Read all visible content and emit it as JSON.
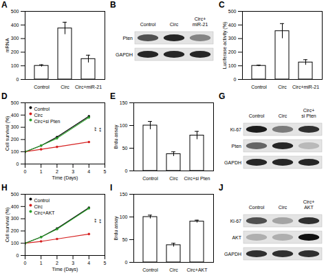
{
  "chart_data": [
    {
      "type": "bar",
      "title": "A",
      "y_label": "mRNA",
      "categories": [
        "Control",
        "Circ",
        "Circ+miR-21"
      ],
      "values": [
        100,
        375,
        150
      ],
      "errors": [
        8,
        45,
        28
      ],
      "color": "#ffffff",
      "ylim": [
        0,
        500
      ],
      "yticks": [
        0,
        100,
        200,
        300,
        400,
        500
      ]
    },
    {
      "type": "bar",
      "title": "C",
      "y_label": "Luciferase activity (%)",
      "categories": [
        "Control",
        "Circ",
        "Circ+miR-21"
      ],
      "values": [
        100,
        355,
        125
      ],
      "errors": [
        5,
        55,
        20
      ],
      "color": "#ffffff",
      "ylim": [
        0,
        500
      ],
      "yticks": [
        0,
        100,
        200,
        300,
        400,
        500
      ]
    },
    {
      "type": "line",
      "title": "D",
      "x_label": "Time (Days)",
      "y_label": "Cell survival (%)",
      "x": [
        0,
        1,
        2,
        4
      ],
      "series": [
        {
          "name": "Control",
          "color": "#000000",
          "values": [
            100,
            150,
            220,
            390
          ]
        },
        {
          "name": "Circ",
          "color": "#d62020",
          "values": [
            100,
            120,
            140,
            180
          ]
        },
        {
          "name": "Circ+si Pten",
          "color": "#2ca02c",
          "values": [
            100,
            150,
            210,
            380
          ]
        }
      ],
      "marker": "circle",
      "legend": "top-left",
      "xlim": [
        0,
        5
      ],
      "xticks": [
        0,
        1,
        2,
        3,
        4,
        5
      ],
      "ylim": [
        0,
        500
      ],
      "yticks": [
        0,
        100,
        200,
        300,
        400,
        500
      ],
      "annotations": [
        {
          "text": "**",
          "x": 4.35,
          "y": 285
        },
        {
          "text": "**",
          "x": 4.65,
          "y": 280
        }
      ]
    },
    {
      "type": "bar",
      "title": "E",
      "y_label": "Brdu assay",
      "categories": [
        "Control",
        "Circ",
        "Circ+si Pten"
      ],
      "values": [
        100,
        37,
        78
      ],
      "errors": [
        9,
        5,
        9
      ],
      "color": "#ffffff",
      "ylim": [
        0,
        150
      ],
      "yticks": [
        0,
        50,
        100,
        150
      ]
    },
    {
      "type": "line",
      "title": "H",
      "x_label": "Time (Days)",
      "y_label": "Cell survival (%)",
      "x": [
        0,
        1,
        2,
        4
      ],
      "series": [
        {
          "name": "Control",
          "color": "#000000",
          "values": [
            100,
            150,
            220,
            390
          ]
        },
        {
          "name": "Circ",
          "color": "#d62020",
          "values": [
            100,
            115,
            135,
            175
          ]
        },
        {
          "name": "Circ+AKT",
          "color": "#2ca02c",
          "values": [
            100,
            150,
            215,
            385
          ]
        }
      ],
      "marker": "circle",
      "legend": "top-left",
      "xlim": [
        0,
        5
      ],
      "xticks": [
        0,
        1,
        2,
        3,
        4,
        5
      ],
      "ylim": [
        0,
        500
      ],
      "yticks": [
        0,
        100,
        200,
        300,
        400,
        500
      ],
      "annotations": [
        {
          "text": "**",
          "x": 4.35,
          "y": 285
        },
        {
          "text": "**",
          "x": 4.65,
          "y": 280
        }
      ]
    },
    {
      "type": "bar",
      "title": "I",
      "y_label": "Brdu assay",
      "categories": [
        "Control",
        "Circ",
        "Circ+AKT"
      ],
      "values": [
        100,
        38,
        90
      ],
      "errors": [
        4,
        4,
        3
      ],
      "color": "#ffffff",
      "ylim": [
        0,
        150
      ],
      "yticks": [
        0,
        50,
        100,
        150
      ]
    }
  ],
  "blots": [
    {
      "title": "B",
      "lanes": [
        [
          "Control"
        ],
        [
          "Circ"
        ],
        [
          "Circ+",
          "miR-21"
        ]
      ],
      "rows": [
        {
          "label": "Pten",
          "intensity": [
            0.7,
            0.9,
            0.45
          ]
        },
        {
          "label": "GAPDH",
          "intensity": [
            0.9,
            0.9,
            0.9
          ]
        }
      ]
    },
    {
      "title": "G",
      "lanes": [
        [
          "Control"
        ],
        [
          "Circ"
        ],
        [
          "Circ+",
          "si Pten"
        ]
      ],
      "rows": [
        {
          "label": "Ki-67",
          "intensity": [
            0.95,
            0.5,
            0.85
          ]
        },
        {
          "label": "Pten",
          "intensity": [
            0.6,
            0.9,
            0.2
          ]
        },
        {
          "label": "GAPDH",
          "intensity": [
            0.9,
            0.9,
            0.9
          ]
        }
      ]
    },
    {
      "title": "J",
      "lanes": [
        [
          "Control"
        ],
        [
          "Circ"
        ],
        [
          "Circ+",
          "AKT"
        ]
      ],
      "rows": [
        {
          "label": "Ki-67",
          "intensity": [
            0.7,
            0.3,
            0.85
          ]
        },
        {
          "label": "AKT",
          "intensity": [
            0.25,
            0.25,
            1.0
          ]
        },
        {
          "label": "GAPDH",
          "intensity": [
            0.85,
            0.85,
            0.85
          ]
        }
      ]
    }
  ]
}
